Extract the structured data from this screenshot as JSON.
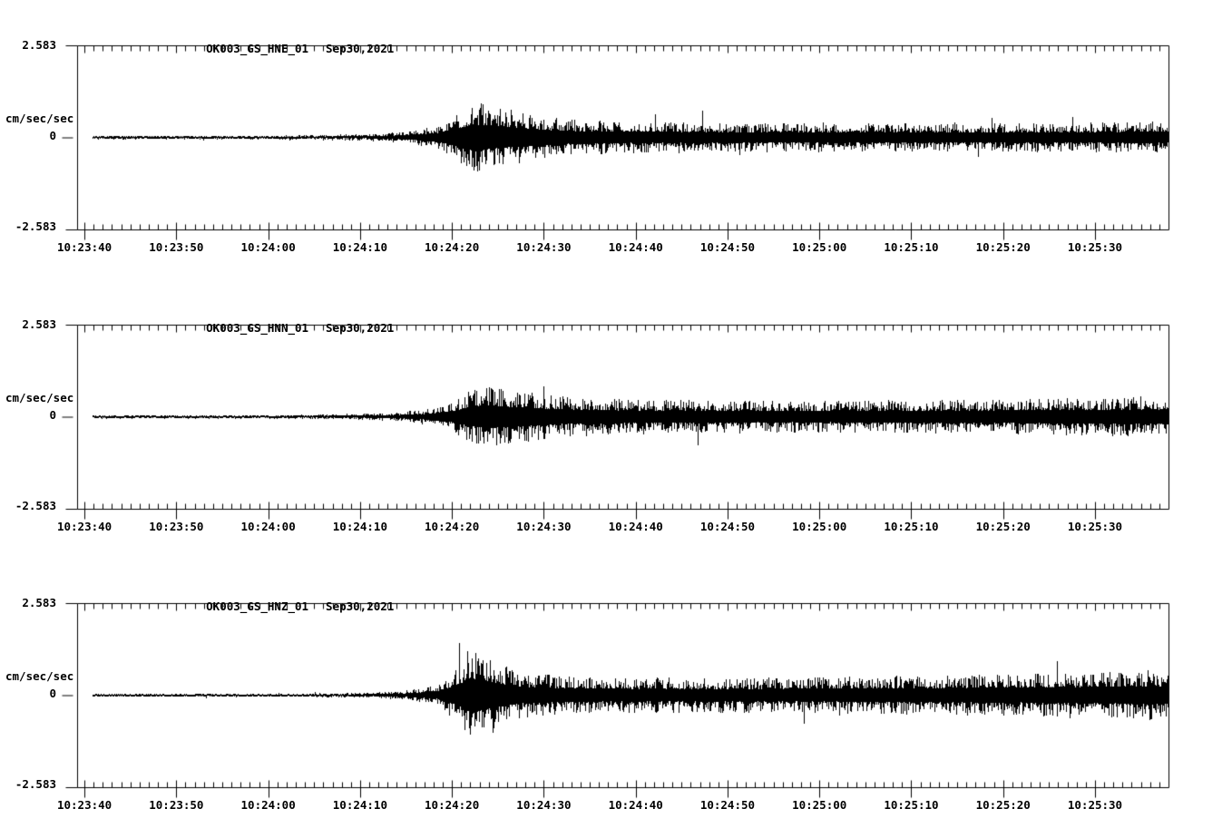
{
  "page": {
    "background": "#ffffff",
    "foreground": "#000000"
  },
  "chart_data": {
    "type": "line",
    "subtype": "seismogram-strong-motion",
    "grid": "off",
    "legend": "none",
    "y_axis": {
      "unit_label": "cm/sec/sec",
      "max": 2.583,
      "min": -2.583,
      "tick_labels": [
        "2.583",
        "0",
        "-2.583"
      ]
    },
    "x_axis": {
      "labels": [
        "10:23:40",
        "10:23:50",
        "10:24:00",
        "10:24:10",
        "10:24:20",
        "10:24:30",
        "10:24:40",
        "10:24:50",
        "10:25:00",
        "10:25:10",
        "10:25:20",
        "10:25:30"
      ],
      "first_label_offset_s": 0.8,
      "label_step_s": 10,
      "minor_tick_step_s": 1,
      "span_s": 118.8,
      "date": "Sep30,2021"
    },
    "traces": [
      {
        "title": "OK003_GS_HNE_01",
        "date": "Sep30,2021",
        "seed": 7,
        "trace_start_s": 1.7,
        "envelope_units_cm_s2": [
          [
            0,
            0.05
          ],
          [
            0.17,
            0.05
          ],
          [
            0.23,
            0.07
          ],
          [
            0.27,
            0.1
          ],
          [
            0.3,
            0.16
          ],
          [
            0.33,
            0.35
          ],
          [
            0.35,
            0.75
          ],
          [
            0.365,
            1.0
          ],
          [
            0.39,
            0.85
          ],
          [
            0.42,
            0.62
          ],
          [
            0.46,
            0.5
          ],
          [
            0.52,
            0.45
          ],
          [
            0.6,
            0.42
          ],
          [
            0.7,
            0.42
          ],
          [
            0.8,
            0.4
          ],
          [
            0.9,
            0.42
          ],
          [
            1.0,
            0.45
          ]
        ]
      },
      {
        "title": "OK003_GS_HNN_01",
        "date": "Sep30,2021",
        "seed": 13,
        "trace_start_s": 1.7,
        "envelope_units_cm_s2": [
          [
            0,
            0.05
          ],
          [
            0.19,
            0.05
          ],
          [
            0.25,
            0.08
          ],
          [
            0.29,
            0.12
          ],
          [
            0.32,
            0.22
          ],
          [
            0.345,
            0.45
          ],
          [
            0.36,
            0.75
          ],
          [
            0.375,
            0.9
          ],
          [
            0.4,
            0.78
          ],
          [
            0.44,
            0.6
          ],
          [
            0.5,
            0.5
          ],
          [
            0.6,
            0.46
          ],
          [
            0.72,
            0.46
          ],
          [
            0.85,
            0.5
          ],
          [
            0.93,
            0.55
          ],
          [
            1.0,
            0.58
          ]
        ]
      },
      {
        "title": "OK003_GS_HNZ_01",
        "date": "Sep30,2021",
        "seed": 29,
        "trace_start_s": 1.7,
        "envelope_units_cm_s2": [
          [
            0,
            0.045
          ],
          [
            0.2,
            0.045
          ],
          [
            0.26,
            0.07
          ],
          [
            0.3,
            0.12
          ],
          [
            0.33,
            0.3
          ],
          [
            0.35,
            0.85
          ],
          [
            0.36,
            1.4
          ],
          [
            0.375,
            1.1
          ],
          [
            0.4,
            0.7
          ],
          [
            0.44,
            0.55
          ],
          [
            0.52,
            0.5
          ],
          [
            0.62,
            0.5
          ],
          [
            0.75,
            0.55
          ],
          [
            0.88,
            0.62
          ],
          [
            1.0,
            0.72
          ]
        ]
      }
    ]
  }
}
